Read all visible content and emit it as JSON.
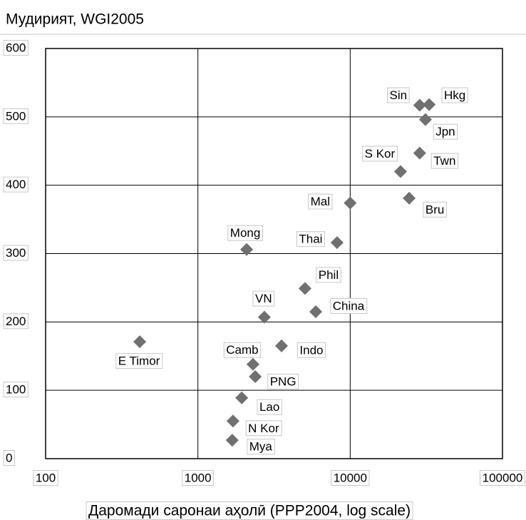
{
  "chart_data": {
    "type": "scatter",
    "title": "Мудирият, WGI2005",
    "x_label": "Даромади саронаи аҳолӣ (PPP2004, log scale)",
    "xscale": "log",
    "grid": true,
    "color": "#707070",
    "xlim": [
      100,
      100000
    ],
    "xticks": [
      100,
      1000,
      10000,
      100000
    ],
    "ylim": [
      0,
      600
    ],
    "yticks": [
      0,
      100,
      200,
      300,
      400,
      500,
      600
    ],
    "labels": [
      "Sin",
      "Hkg",
      "Jpn",
      "Twn",
      "S Kor",
      "Bru",
      "Mal",
      "Thai",
      "Mong",
      "Phil",
      "China",
      "VN",
      "E Timor",
      "Indo",
      "Camb",
      "PNG",
      "Lao",
      "N Kor",
      "Mya"
    ],
    "x": [
      28600,
      33000,
      31200,
      28600,
      21400,
      24400,
      10000,
      8200,
      2090,
      5050,
      5940,
      2730,
      415,
      3540,
      2300,
      2380,
      1940,
      1700,
      1680
    ],
    "y": [
      517,
      518,
      496,
      447,
      420,
      381,
      374,
      316,
      306,
      249,
      215,
      207,
      171,
      165,
      138,
      120,
      89,
      55,
      27
    ]
  }
}
